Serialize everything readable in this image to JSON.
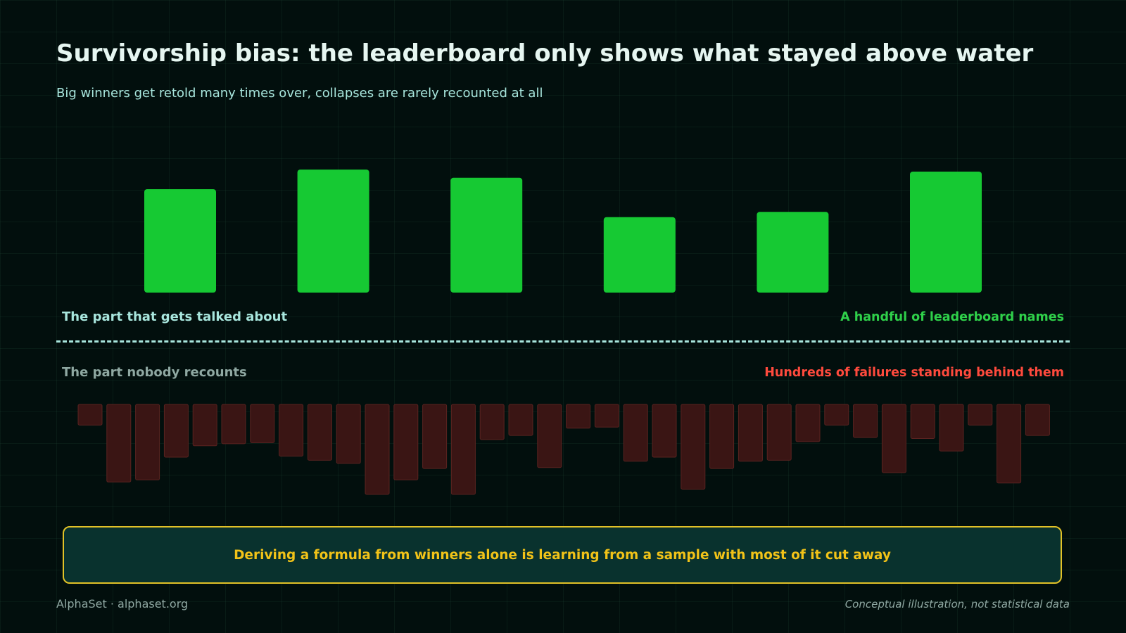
{
  "title": "Survivorship bias: the leaderboard only shows what stayed above water",
  "subtitle": "Big winners get retold many times over, collapses are rarely recounted at all",
  "labels": {
    "top_left": "The part that gets talked about",
    "top_right": "A handful of leaderboard names",
    "bottom_left": "The part nobody recounts",
    "bottom_right": "Hundreds of failures standing behind them"
  },
  "callout": "Deriving a formula from winners alone is learning from a sample with most of it cut away",
  "footer": {
    "left": "AlphaSet · alphaset.org",
    "right": "Conceptual illustration, not statistical data"
  },
  "colors": {
    "background": "#020f0d",
    "survivor_bar": "#16c933",
    "failure_bar": "#3a1514",
    "failure_bar_border": "#5a2320",
    "callout_border": "#e2c227",
    "callout_fill": "#09322e",
    "failure_label": "#ff4a3d",
    "survivor_label": "#2fd14a"
  },
  "chart_data": [
    {
      "type": "bar",
      "series": [
        {
          "values": [
            100,
            119,
            111,
            73,
            78,
            117
          ]
        }
      ]
    },
    {
      "type": "bar",
      "series": [
        {
          "values": [
            -20,
            -75,
            -73,
            -51,
            -40,
            -38,
            -37,
            -50,
            -54,
            -57,
            -87,
            -73,
            -62,
            -87,
            -34,
            -30,
            -61,
            -23,
            -22,
            -55,
            -51,
            -82,
            -62,
            -55,
            -54,
            -36,
            -20,
            -32,
            -66,
            -33,
            -45,
            -20,
            -76,
            -30
          ]
        }
      ]
    }
  ]
}
